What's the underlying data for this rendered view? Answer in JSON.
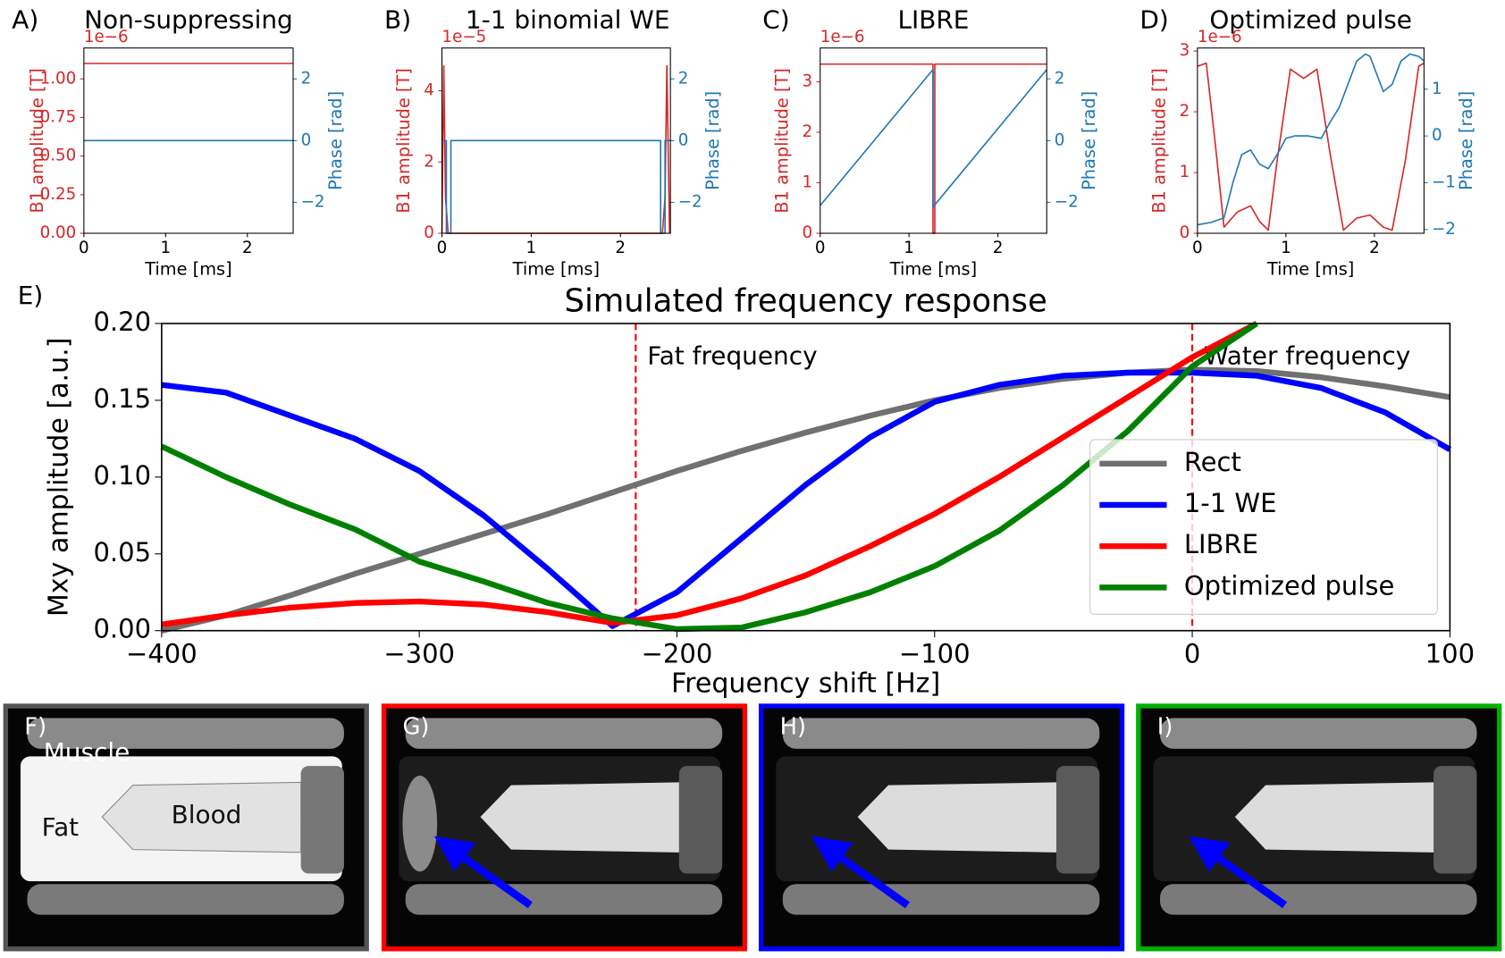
{
  "chart_data": [
    {
      "type": "line",
      "panel_label": "A)",
      "title": "Non-suppressing",
      "xlabel": "Time [ms]",
      "ylabel": "B1 amplitude [T]",
      "y2label": "Phase [rad]",
      "y_offset_label": "1e−6",
      "xlim": [
        0,
        2.56
      ],
      "xticks": [
        0,
        1,
        2
      ],
      "ylim": [
        0,
        1.2
      ],
      "yticks": [
        {
          "value": 0,
          "label": "0.00"
        },
        {
          "value": 0.25,
          "label": "0.25"
        },
        {
          "value": 0.5,
          "label": "0.50"
        },
        {
          "value": 0.75,
          "label": "0.75"
        },
        {
          "value": 1,
          "label": "1.00"
        }
      ],
      "y2lim": [
        -3,
        3
      ],
      "y2ticks": [
        {
          "value": -2,
          "label": "−2"
        },
        0,
        2
      ],
      "series": [
        {
          "color": "#d62728",
          "axis": "y",
          "x": [
            0,
            2.56
          ],
          "values": [
            1.1,
            1.1
          ]
        },
        {
          "color": "#1f77b4",
          "axis": "y2",
          "x": [
            0,
            2.56
          ],
          "values": [
            0,
            0
          ]
        }
      ]
    },
    {
      "type": "line",
      "panel_label": "B)",
      "title": "1-1 binomial WE",
      "xlabel": "Time [ms]",
      "ylabel": "B1 amplitude [T]",
      "y2label": "Phase [rad]",
      "y_offset_label": "1e−5",
      "xlim": [
        0,
        2.56
      ],
      "xticks": [
        0,
        1,
        2
      ],
      "ylim": [
        0,
        5.2
      ],
      "yticks": [
        0,
        2,
        4
      ],
      "y2lim": [
        -3,
        3
      ],
      "y2ticks": [
        {
          "value": -2,
          "label": "−2"
        },
        0,
        2
      ],
      "series": [
        {
          "color": "#d62728",
          "axis": "y",
          "x": [
            0,
            0.02,
            0.04,
            0.07,
            2.47,
            2.5,
            2.52,
            2.55
          ],
          "values": [
            0,
            4.7,
            1,
            0,
            0,
            1,
            4.7,
            0
          ]
        },
        {
          "color": "#1f77b4",
          "axis": "y2",
          "x": [
            0,
            0.05,
            0.05,
            0.1,
            0.1,
            2.45,
            2.45,
            2.5,
            2.5,
            2.56
          ],
          "values": [
            0,
            0,
            -3,
            -3,
            0,
            0,
            -3,
            -3,
            0,
            0
          ]
        }
      ]
    },
    {
      "type": "line",
      "panel_label": "C)",
      "title": "LIBRE",
      "xlabel": "Time [ms]",
      "ylabel": "B1 amplitude [T]",
      "y2label": "Phase [rad]",
      "y_offset_label": "1e−6",
      "xlim": [
        0,
        2.55
      ],
      "xticks": [
        0,
        1,
        2
      ],
      "ylim": [
        0,
        3.67
      ],
      "yticks": [
        0,
        1,
        2,
        3
      ],
      "y2lim": [
        -3,
        3
      ],
      "y2ticks": [
        {
          "value": -2,
          "label": "−2"
        },
        0,
        2
      ],
      "series": [
        {
          "color": "#d62728",
          "axis": "y",
          "x": [
            0,
            1.27,
            1.27,
            1.29,
            1.29,
            2.55
          ],
          "values": [
            3.35,
            3.35,
            0,
            0,
            3.35,
            3.35
          ]
        },
        {
          "color": "#1f77b4",
          "axis": "y2",
          "x": [
            0,
            1.27,
            1.27,
            2.55
          ],
          "values": [
            -2.1,
            2.3,
            -2.15,
            2.3
          ]
        }
      ]
    },
    {
      "type": "line",
      "panel_label": "D)",
      "title": "Optimized pulse",
      "xlabel": "Time [ms]",
      "ylabel": "B1 amplitude [T]",
      "y2label": "Phase [rad]",
      "y_offset_label": "1e−6",
      "xlim": [
        0,
        2.56
      ],
      "xticks": [
        0,
        1,
        2
      ],
      "ylim": [
        0,
        3.05
      ],
      "yticks": [
        0,
        1,
        2,
        3
      ],
      "y2lim": [
        -2.08,
        1.88
      ],
      "y2ticks": [
        {
          "value": -2,
          "label": "−2"
        },
        {
          "value": -1,
          "label": "−1"
        },
        0,
        1
      ],
      "series": [
        {
          "color": "#d62728",
          "axis": "y",
          "x": [
            0,
            0.1,
            0.2,
            0.3,
            0.45,
            0.6,
            0.7,
            0.8,
            0.9,
            1.05,
            1.2,
            1.35,
            1.5,
            1.65,
            1.8,
            1.95,
            2.1,
            2.2,
            2.35,
            2.5,
            2.56
          ],
          "values": [
            2.75,
            2.8,
            1.5,
            0.1,
            0.35,
            0.45,
            0.2,
            0.05,
            1.2,
            2.7,
            2.55,
            2.7,
            1.3,
            0.05,
            0.25,
            0.3,
            0.1,
            0.05,
            1.2,
            2.75,
            2.8
          ]
        },
        {
          "color": "#1f77b4",
          "axis": "y2",
          "x": [
            0,
            0.15,
            0.3,
            0.4,
            0.5,
            0.6,
            0.7,
            0.8,
            0.9,
            1.0,
            1.1,
            1.25,
            1.4,
            1.5,
            1.6,
            1.7,
            1.8,
            1.9,
            1.95,
            2.0,
            2.1,
            2.2,
            2.3,
            2.4,
            2.5,
            2.56
          ],
          "values": [
            -1.9,
            -1.85,
            -1.75,
            -1.0,
            -0.4,
            -0.3,
            -0.6,
            -0.7,
            -0.4,
            -0.05,
            0,
            0,
            -0.05,
            0.3,
            0.6,
            1.1,
            1.6,
            1.75,
            1.7,
            1.45,
            0.95,
            1.1,
            1.6,
            1.75,
            1.7,
            1.6
          ]
        }
      ]
    },
    {
      "type": "line",
      "panel_label": "E)",
      "title": "Simulated frequency response",
      "xlabel": "Frequency shift [Hz]",
      "ylabel": "Mxy amplitude [a.u.]",
      "xlim": [
        -400,
        100
      ],
      "xticks": [
        {
          "value": -400,
          "label": "−400"
        },
        {
          "value": -300,
          "label": "−300"
        },
        {
          "value": -200,
          "label": "−200"
        },
        {
          "value": -100,
          "label": "−100"
        },
        0,
        100
      ],
      "ylim": [
        0,
        0.2
      ],
      "yticks": [
        {
          "value": 0,
          "label": "0.00"
        },
        {
          "value": 0.05,
          "label": "0.05"
        },
        {
          "value": 0.1,
          "label": "0.10"
        },
        {
          "value": 0.15,
          "label": "0.15"
        },
        {
          "value": 0.2,
          "label": "0.20"
        }
      ],
      "legend_loc": "lower right",
      "vlines": [
        {
          "x": -216,
          "label": "Fat frequency",
          "color": "#ff0000"
        },
        {
          "x": 0,
          "label": "Water frequency",
          "color": "#ff0000"
        }
      ],
      "x": [
        -400,
        -375,
        -350,
        -325,
        -300,
        -275,
        -250,
        -225,
        -200,
        -175,
        -150,
        -125,
        -100,
        -75,
        -50,
        -25,
        0,
        25,
        50,
        75,
        100
      ],
      "series": [
        {
          "name": "Rect",
          "color": "#707070",
          "values": [
            0,
            0.01,
            0.023,
            0.037,
            0.05,
            0.063,
            0.076,
            0.09,
            0.104,
            0.117,
            0.129,
            0.14,
            0.15,
            0.158,
            0.164,
            0.168,
            0.17,
            0.169,
            0.165,
            0.159,
            0.152
          ]
        },
        {
          "name": "1-1 WE",
          "color": "#0000ff",
          "values": [
            0.16,
            0.155,
            0.14,
            0.125,
            0.104,
            0.075,
            0.04,
            0.003,
            0.025,
            0.06,
            0.095,
            0.126,
            0.149,
            0.16,
            0.166,
            0.168,
            0.168,
            0.166,
            0.158,
            0.142,
            0.118
          ]
        },
        {
          "name": "LIBRE",
          "color": "#ff0000",
          "values": [
            0.004,
            0.01,
            0.015,
            0.018,
            0.019,
            0.017,
            0.012,
            0.005,
            0.01,
            0.021,
            0.036,
            0.055,
            0.076,
            0.1,
            0.126,
            0.152,
            0.178,
            0.2,
            null,
            null,
            null
          ]
        },
        {
          "name": "Optimized pulse",
          "color": "#008000",
          "values": [
            0.12,
            0.1,
            0.082,
            0.066,
            0.045,
            0.032,
            0.018,
            0.008,
            0.001,
            0.002,
            0.012,
            0.025,
            0.042,
            0.065,
            0.095,
            0.13,
            0.172,
            0.2,
            null,
            null,
            null
          ]
        }
      ]
    }
  ],
  "images": [
    {
      "label": "F)",
      "border": "#555555",
      "annotations": [
        "Muscle",
        "Fat",
        "Blood"
      ]
    },
    {
      "label": "G)",
      "border": "#ff0000",
      "arrow": "#0000ff"
    },
    {
      "label": "H)",
      "border": "#0000ff",
      "arrow": "#0000ff"
    },
    {
      "label": "I)",
      "border": "#00b000",
      "arrow": "#0000ff"
    }
  ]
}
